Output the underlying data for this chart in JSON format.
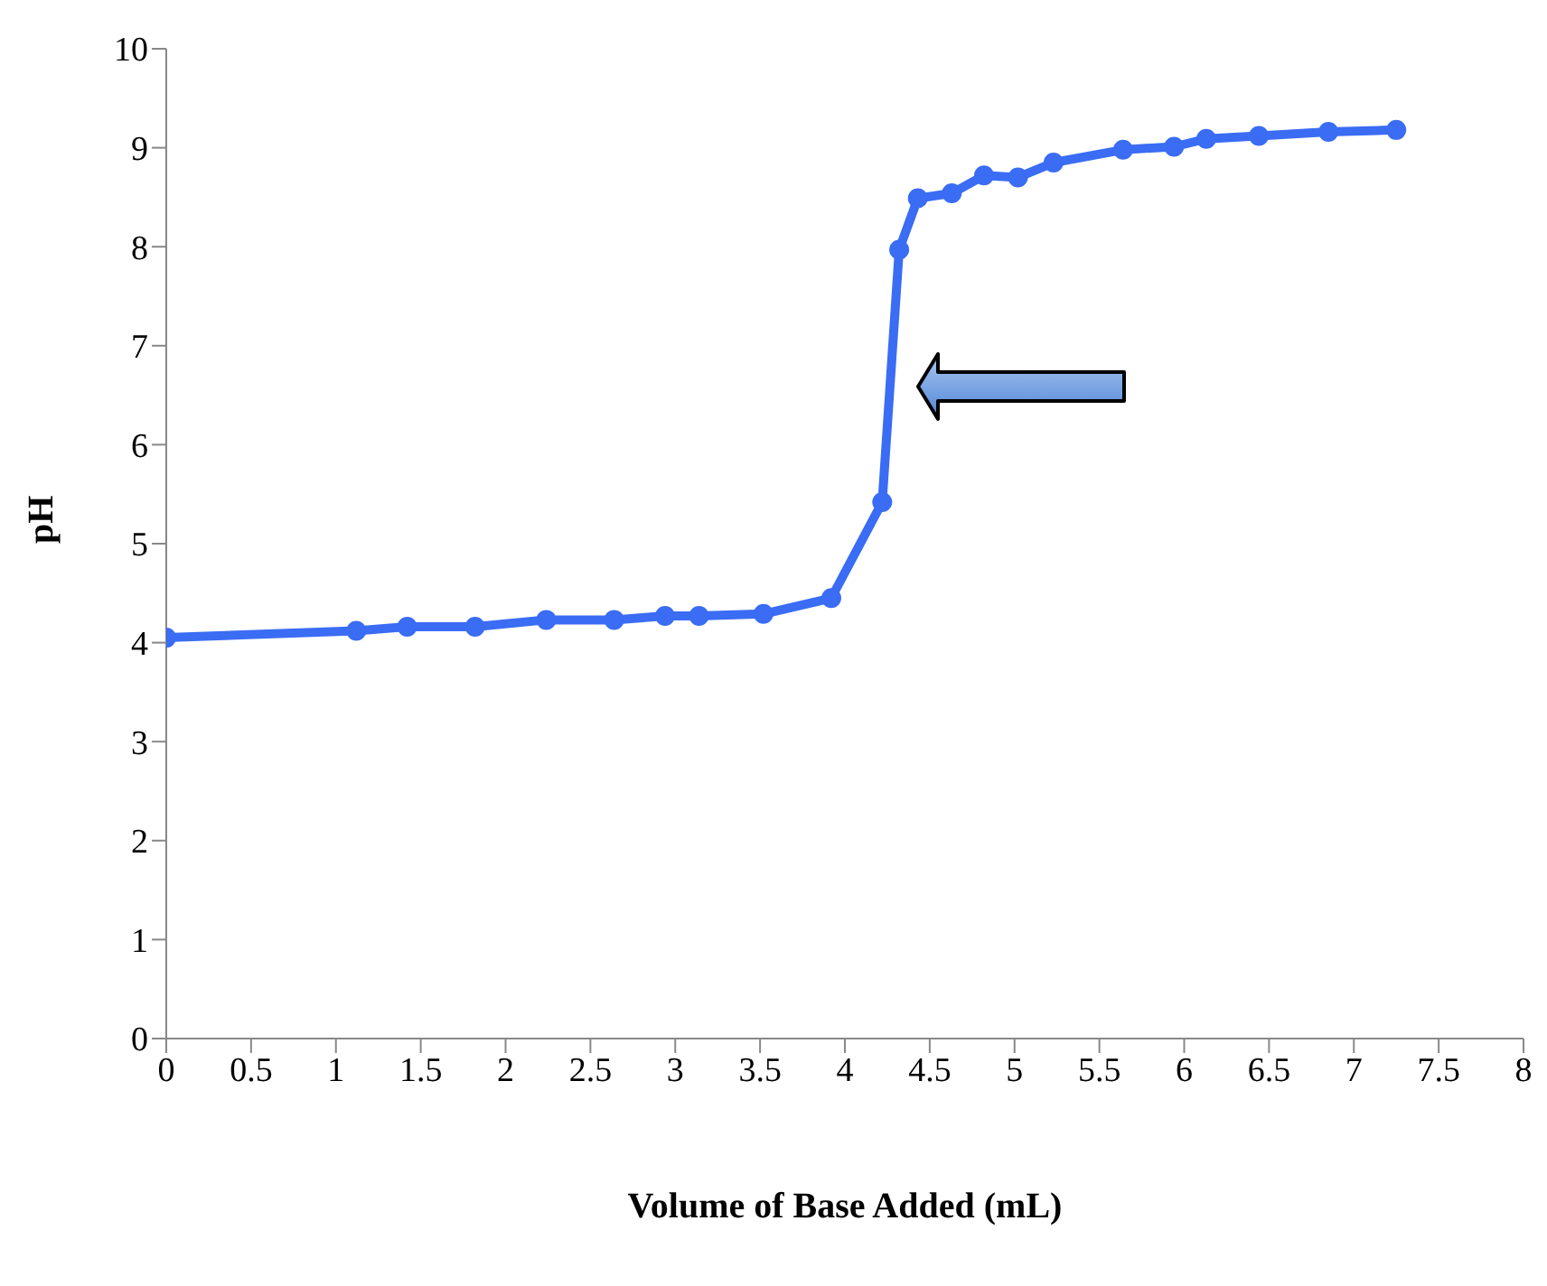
{
  "chart_data": {
    "type": "line",
    "xlabel": "Volume of Base Added (mL)",
    "ylabel": "pH",
    "x": [
      0,
      1.12,
      1.42,
      1.82,
      2.24,
      2.64,
      2.94,
      3.14,
      3.52,
      3.92,
      4.22,
      4.32,
      4.43,
      4.63,
      4.82,
      5.02,
      5.23,
      5.64,
      5.94,
      6.13,
      6.44,
      6.85,
      7.25
    ],
    "series": [
      {
        "color": "#3a6cf4",
        "values": [
          4.05,
          4.12,
          4.16,
          4.16,
          4.23,
          4.23,
          4.27,
          4.27,
          4.29,
          4.45,
          5.42,
          7.97,
          8.49,
          8.54,
          8.72,
          8.7,
          8.85,
          8.98,
          9.01,
          9.09,
          9.12,
          9.16,
          9.18
        ]
      }
    ],
    "xlim": [
      0,
      8
    ],
    "xticks": [
      0,
      0.5,
      1,
      1.5,
      2,
      2.5,
      3,
      3.5,
      4,
      4.5,
      5,
      5.5,
      6,
      6.5,
      7,
      7.5,
      8
    ],
    "ylim": [
      0,
      10
    ],
    "yticks": [
      0,
      1,
      2,
      3,
      4,
      5,
      6,
      7,
      8,
      9,
      10
    ],
    "grid": false,
    "legend": false,
    "marker": "circle",
    "line_style": "solid"
  }
}
